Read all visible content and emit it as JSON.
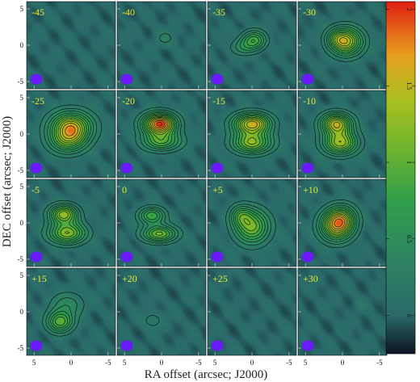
{
  "chart_data": {
    "type": "heatmap",
    "subtype": "channel-map-grid",
    "xlabel": "RA offset  (arcsec; J2000)",
    "ylabel": "DEC offset  (arcsec; J2000)",
    "grid": {
      "rows": 4,
      "cols": 4
    },
    "xlim": [
      6,
      -6
    ],
    "ylim": [
      -6,
      6
    ],
    "xticks": [
      5,
      0,
      -5
    ],
    "yticks": [
      5,
      0,
      -5
    ],
    "xtick_labels": [
      "5",
      "0",
      "-5"
    ],
    "ytick_labels": [
      "5",
      "0",
      "-5"
    ],
    "colorbar": {
      "vmin": -0.25,
      "vmax": 2.05,
      "ticks": [
        0,
        0.5,
        1,
        1.5,
        2
      ],
      "tick_labels": [
        "0",
        "0.5",
        "1",
        "1.5",
        "2"
      ],
      "orientation": "vertical",
      "placement": "right"
    },
    "colors": {
      "low": "#0a1420",
      "background": "#2a6a6a",
      "mid": "#2fa04a",
      "midhigh": "#a8c020",
      "high": "#e8a020",
      "peak": "#e02010",
      "beam": "#6a1aff",
      "label": "#e8e830"
    },
    "beam_position": "bottom-left",
    "panels": [
      {
        "label": "-45",
        "sources": []
      },
      {
        "label": "-40",
        "sources": [
          {
            "x": -0.5,
            "y": 1.0,
            "sx": 1.0,
            "sy": 0.8,
            "amp": 0.2
          }
        ]
      },
      {
        "label": "-35",
        "sources": [
          {
            "x": -0.3,
            "y": 0.7,
            "sx": 1.1,
            "sy": 0.9,
            "amp": 0.85
          },
          {
            "x": 1.3,
            "y": -0.3,
            "sx": 1.2,
            "sy": 0.8,
            "amp": 0.35
          }
        ]
      },
      {
        "label": "-30",
        "sources": [
          {
            "x": -0.5,
            "y": 0.5,
            "sx": 1.5,
            "sy": 1.3,
            "amp": 1.4
          },
          {
            "x": 0.8,
            "y": 1.0,
            "sx": 1.0,
            "sy": 0.9,
            "amp": 0.4
          }
        ]
      },
      {
        "label": "-25",
        "sources": [
          {
            "x": 0.0,
            "y": 1.0,
            "sx": 1.9,
            "sy": 1.4,
            "amp": 1.5
          },
          {
            "x": 0.5,
            "y": -1.0,
            "sx": 1.7,
            "sy": 1.2,
            "amp": 0.8
          }
        ]
      },
      {
        "label": "-20",
        "sources": [
          {
            "x": 0.3,
            "y": 1.4,
            "sx": 1.5,
            "sy": 1.0,
            "amp": 2.0
          },
          {
            "x": 0.0,
            "y": -1.0,
            "sx": 1.8,
            "sy": 0.9,
            "amp": 0.9
          }
        ]
      },
      {
        "label": "-15",
        "sources": [
          {
            "x": 0.0,
            "y": 1.4,
            "sx": 1.7,
            "sy": 1.0,
            "amp": 1.6
          },
          {
            "x": 0.0,
            "y": -1.2,
            "sx": 1.8,
            "sy": 1.0,
            "amp": 1.2
          }
        ]
      },
      {
        "label": "-10",
        "sources": [
          {
            "x": 0.8,
            "y": 1.4,
            "sx": 1.4,
            "sy": 1.0,
            "amp": 1.5
          },
          {
            "x": 0.3,
            "y": -1.2,
            "sx": 1.6,
            "sy": 1.1,
            "amp": 1.3
          }
        ]
      },
      {
        "label": "-5",
        "sources": [
          {
            "x": 1.0,
            "y": 1.2,
            "sx": 1.3,
            "sy": 0.9,
            "amp": 1.3
          },
          {
            "x": 0.5,
            "y": -1.4,
            "sx": 1.7,
            "sy": 1.0,
            "amp": 1.2
          }
        ]
      },
      {
        "label": "0",
        "sources": [
          {
            "x": 1.3,
            "y": 1.0,
            "sx": 1.2,
            "sy": 0.8,
            "amp": 0.9
          },
          {
            "x": 0.3,
            "y": -1.5,
            "sx": 1.6,
            "sy": 0.8,
            "amp": 1.1
          }
        ]
      },
      {
        "label": "+5",
        "sources": [
          {
            "x": 0.0,
            "y": -0.5,
            "sx": 1.6,
            "sy": 1.6,
            "amp": 1.1
          },
          {
            "x": 1.5,
            "y": 1.0,
            "sx": 1.0,
            "sy": 1.0,
            "amp": 0.6
          }
        ]
      },
      {
        "label": "+10",
        "sources": [
          {
            "x": 0.8,
            "y": -0.4,
            "sx": 1.5,
            "sy": 1.4,
            "amp": 1.5
          },
          {
            "x": 0.0,
            "y": 0.8,
            "sx": 1.3,
            "sy": 1.2,
            "amp": 0.7
          }
        ]
      },
      {
        "label": "+15",
        "sources": [
          {
            "x": 1.5,
            "y": -1.4,
            "sx": 1.2,
            "sy": 1.0,
            "amp": 1.0
          },
          {
            "x": 0.5,
            "y": 1.0,
            "sx": 1.6,
            "sy": 1.2,
            "amp": 0.4
          }
        ]
      },
      {
        "label": "+20",
        "sources": [
          {
            "x": 1.2,
            "y": -1.2,
            "sx": 1.0,
            "sy": 0.8,
            "amp": 0.22
          }
        ]
      },
      {
        "label": "+25",
        "sources": []
      },
      {
        "label": "+30",
        "sources": [
          {
            "x": -2.5,
            "y": 1.0,
            "sx": 0.6,
            "sy": 0.6,
            "amp": 0.15
          }
        ]
      }
    ]
  }
}
